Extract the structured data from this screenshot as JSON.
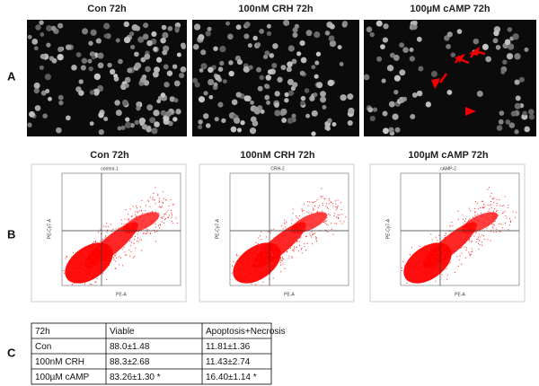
{
  "panels": {
    "a": {
      "label": "A",
      "titles": [
        "Con 72h",
        "100nM CRH 72h",
        "100µM cAMP 72h"
      ]
    },
    "b": {
      "label": "B",
      "titles": [
        "Con 72h",
        "100nM CRH 72h",
        "100µM cAMP 72h"
      ],
      "plots": [
        {
          "title": "control-1",
          "x_label": "PE-A",
          "y_label": "PE-Cy7-A"
        },
        {
          "title": "CRH-2",
          "x_label": "PE-A",
          "y_label": "PE-Cy7-A"
        },
        {
          "title": "cAMP-2",
          "x_label": "PE-A",
          "y_label": "PE-Cy7-A"
        }
      ]
    },
    "c": {
      "label": "C",
      "table": {
        "header": [
          "72h",
          "Viable",
          "Apoptosis+Necrosis"
        ],
        "rows": [
          [
            "Con",
            "88.0±1.48",
            "11.81±1.36"
          ],
          [
            "100nM CRH",
            "88.3±2.68",
            "11.43±2.74"
          ],
          [
            "100µM cAMP",
            "83.26±1.30 *",
            "16.40±1.14 *"
          ]
        ]
      }
    }
  }
}
